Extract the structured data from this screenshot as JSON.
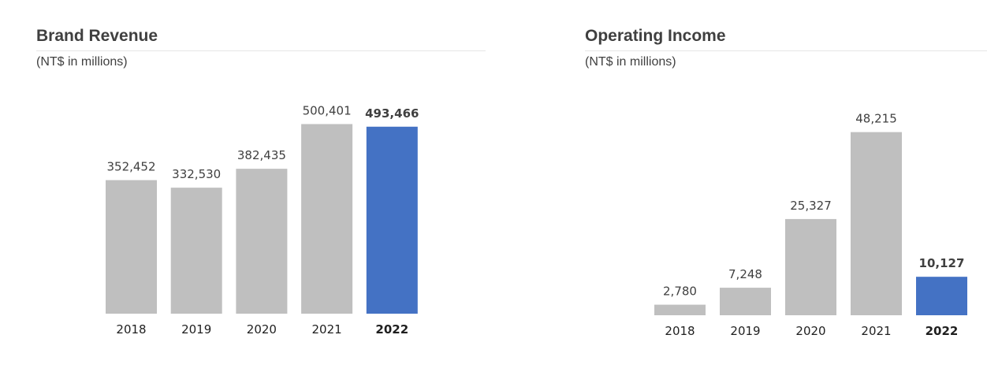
{
  "chart_data": [
    {
      "type": "bar",
      "title": "Brand Revenue",
      "subtitle": "(NT$ in millions)",
      "categories": [
        "2018",
        "2019",
        "2020",
        "2021",
        "2022"
      ],
      "values": [
        352452,
        332530,
        382435,
        500401,
        493466
      ],
      "value_labels": [
        "352,452",
        "332,530",
        "382,435",
        "500,401",
        "493,466"
      ],
      "highlight_index": 4,
      "ylim": [
        0,
        520000
      ],
      "grid": false,
      "colors": {
        "default": "#bfbfbf",
        "highlight": "#4472c4"
      }
    },
    {
      "type": "bar",
      "title": "Operating Income",
      "subtitle": "(NT$ in millions)",
      "categories": [
        "2018",
        "2019",
        "2020",
        "2021",
        "2022"
      ],
      "values": [
        2780,
        7248,
        25327,
        48215,
        10127
      ],
      "value_labels": [
        "2,780",
        "7,248",
        "25,327",
        "48,215",
        "10,127"
      ],
      "highlight_index": 4,
      "ylim": [
        0,
        50000
      ],
      "grid": false,
      "colors": {
        "default": "#bfbfbf",
        "highlight": "#4472c4"
      }
    }
  ]
}
